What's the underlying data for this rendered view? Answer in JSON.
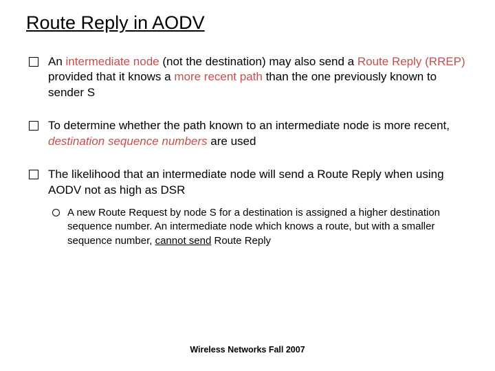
{
  "title": "Route Reply in AODV",
  "footer": "Wireless Networks Fall 2007",
  "bullets": {
    "b1": {
      "t1": "An ",
      "t2": "intermediate node",
      "t3": " (not the destination) may also send a ",
      "t4": "Route Reply (RREP)",
      "t5": " provided that it knows a ",
      "t6": "more recent path",
      "t7": " than the one previously known to sender S"
    },
    "b2": {
      "t1": "To determine whether the path known to an intermediate node is more recent, ",
      "t2": "destination sequence numbers",
      "t3": " are used"
    },
    "b3": {
      "t1": "The likelihood that an intermediate node will send a Route Reply when using AODV not as high as DSR",
      "sub": {
        "t1": "A new Route Request by node S for a destination is assigned a higher destination sequence number. An intermediate node which knows a route, but with a smaller sequence number, ",
        "t2": "cannot send",
        "t3": " Route Reply"
      }
    }
  }
}
